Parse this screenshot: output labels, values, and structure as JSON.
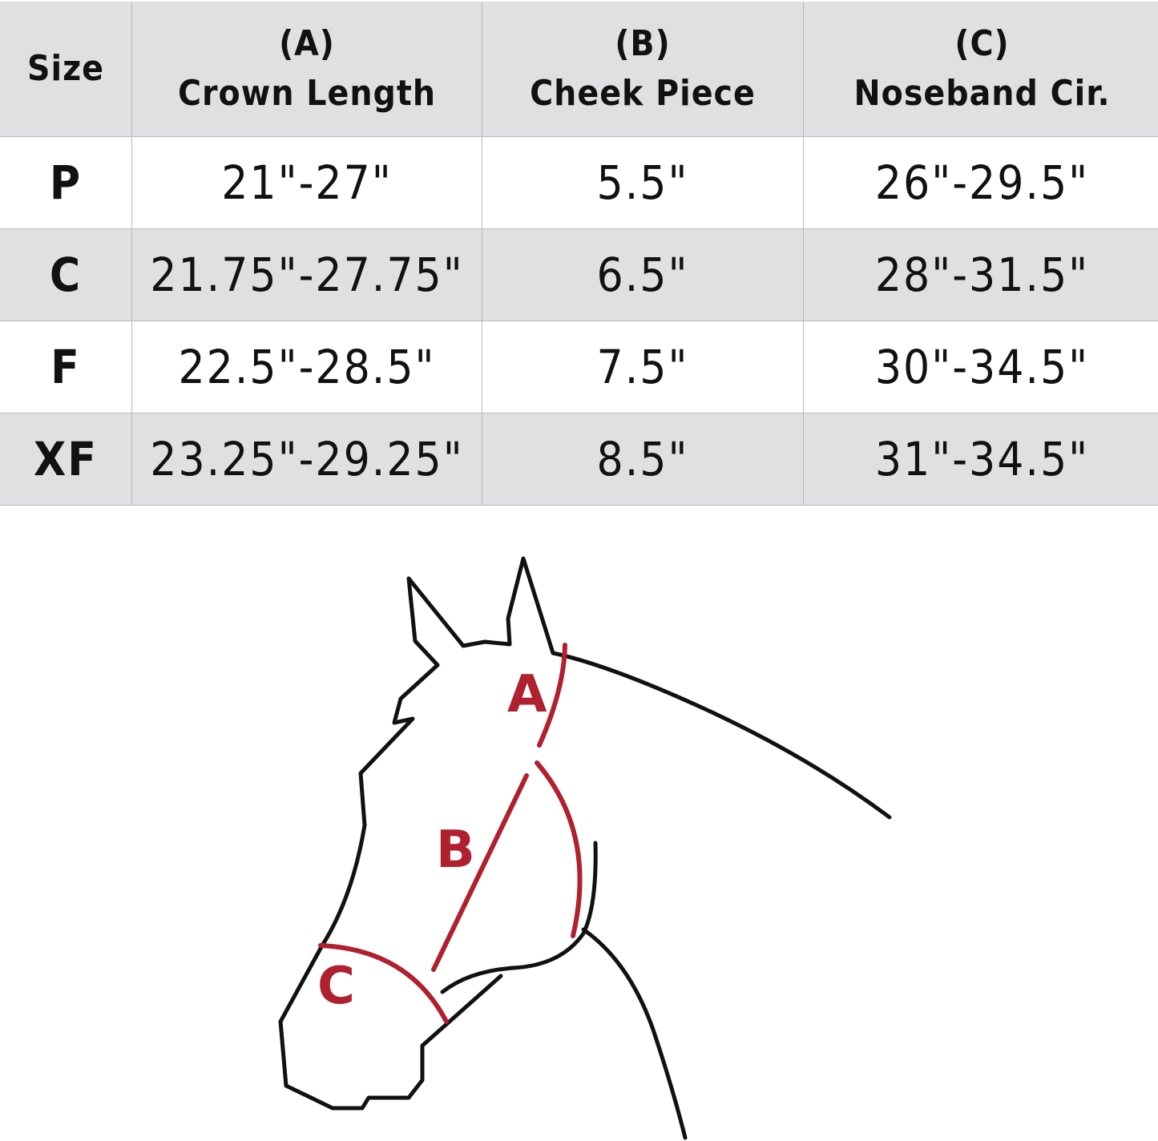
{
  "table": {
    "headers": [
      {
        "line1": "",
        "line2": "Size"
      },
      {
        "line1": "(A)",
        "line2": "Crown Length"
      },
      {
        "line1": "(B)",
        "line2": "Cheek Piece"
      },
      {
        "line1": "(C)",
        "line2": "Noseband Cir."
      }
    ],
    "rows": [
      {
        "size": "P",
        "crown": "21\"-27\"",
        "cheek": "5.5\"",
        "noseband": "26\"-29.5\""
      },
      {
        "size": "C",
        "crown": "21.75\"-27.75\"",
        "cheek": "6.5\"",
        "noseband": "28\"-31.5\""
      },
      {
        "size": "F",
        "crown": "22.5\"-28.5\"",
        "cheek": "7.5\"",
        "noseband": "30\"-34.5\""
      },
      {
        "size": "XF",
        "crown": "23.25\"-29.25\"",
        "cheek": "8.5\"",
        "noseband": "31\"-34.5\""
      }
    ]
  },
  "diagram": {
    "labels": {
      "a": "A",
      "b": "B",
      "c": "C"
    },
    "colors": {
      "outline": "#111111",
      "measure": "#b0202e",
      "header_bg": "#dfe0e2"
    }
  }
}
